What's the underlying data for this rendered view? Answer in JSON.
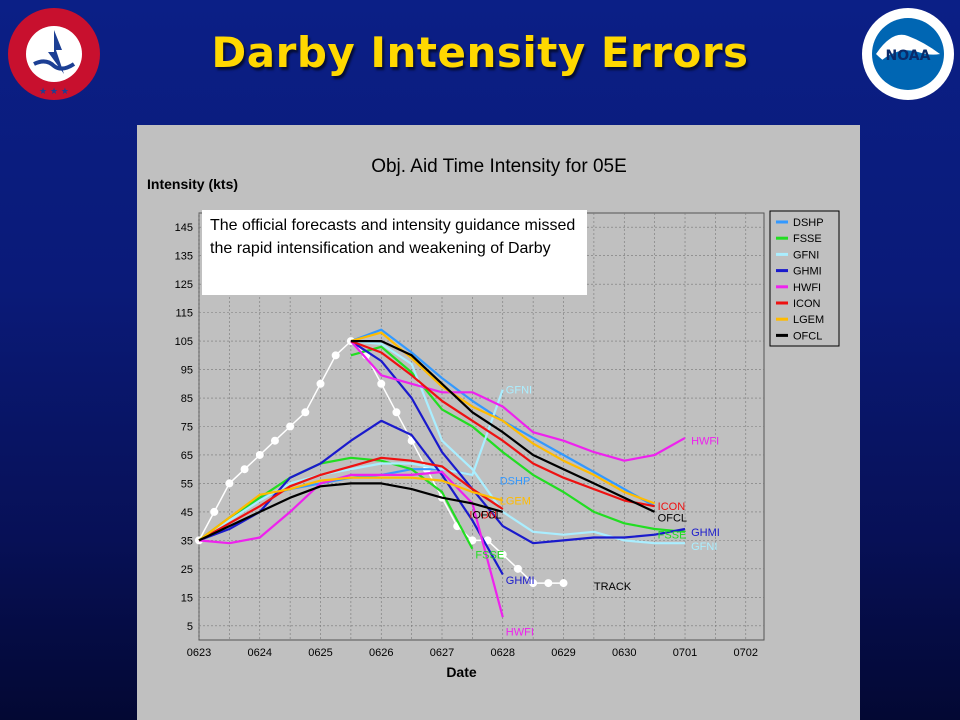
{
  "slide": {
    "title": "Darby Intensity Errors",
    "left_logo": "National Weather Service",
    "right_logo": "NOAA"
  },
  "annotation": "The official forecasts and intensity guidance missed the rapid intensification and weakening of Darby",
  "chart_data": {
    "type": "line",
    "title": "Obj. Aid Time Intensity for 05E",
    "ylabel": "Intensity (kts)",
    "xlabel": "Date",
    "x_ticks": [
      "0623",
      "0624",
      "0625",
      "0626",
      "0627",
      "0628",
      "0629",
      "0630",
      "0701",
      "0702"
    ],
    "y_ticks": [
      5,
      15,
      25,
      35,
      45,
      55,
      65,
      75,
      85,
      95,
      105,
      115,
      125,
      135,
      145
    ],
    "xlim": [
      0,
      9.3
    ],
    "ylim": [
      0,
      150
    ],
    "grid": true,
    "legend_position": "right",
    "legend": [
      {
        "name": "DSHP",
        "color": "#3399ff"
      },
      {
        "name": "FSSE",
        "color": "#22dd22"
      },
      {
        "name": "GFNI",
        "color": "#aaeeff"
      },
      {
        "name": "GHMI",
        "color": "#1a1acc"
      },
      {
        "name": "HWFI",
        "color": "#ee22ee"
      },
      {
        "name": "ICON",
        "color": "#ee1111"
      },
      {
        "name": "LGEM",
        "color": "#ffbb00"
      },
      {
        "name": "OFCL",
        "color": "#000000"
      }
    ],
    "series": [
      {
        "name": "TRACK",
        "color": "#ffffff",
        "marker": true,
        "x": [
          0,
          0.25,
          0.5,
          0.75,
          1,
          1.25,
          1.5,
          1.75,
          2,
          2.25,
          2.5,
          2.75,
          3,
          3.25,
          3.5,
          3.75,
          4,
          4.25,
          4.5,
          4.75,
          5,
          5.25,
          5.5,
          5.75,
          6
        ],
        "y": [
          35,
          45,
          55,
          60,
          65,
          70,
          75,
          80,
          90,
          100,
          105,
          100,
          90,
          80,
          70,
          60,
          50,
          40,
          35,
          35,
          30,
          25,
          20,
          20,
          20
        ]
      },
      {
        "name": "DSHP",
        "color": "#3399ff",
        "segments": [
          {
            "x": [
              0,
              0.5,
              1,
              1.5,
              2,
              2.5,
              3,
              3.5,
              4,
              4.5,
              5,
              5.5,
              6,
              6.5,
              7,
              7.5
            ],
            "y": [
              35,
              42,
              50,
              53,
              55,
              57,
              58,
              60,
              60,
              58,
              null,
              null,
              null,
              null,
              null,
              null
            ]
          },
          {
            "x": [
              2.5,
              3,
              3.5,
              4,
              4.5,
              5,
              5.5,
              6,
              6.5,
              7,
              7.5
            ],
            "y": [
              105,
              109,
              101,
              92,
              84,
              77,
              71,
              65,
              59,
              53,
              47
            ]
          }
        ]
      },
      {
        "name": "FSSE",
        "color": "#22dd22",
        "segments": [
          {
            "x": [
              0,
              0.5,
              1,
              1.5,
              2,
              2.5,
              3,
              3.5,
              4,
              4.5
            ],
            "y": [
              35,
              43,
              50,
              57,
              62,
              64,
              63,
              60,
              52,
              32
            ]
          },
          {
            "x": [
              2.5,
              3,
              3.5,
              4,
              4.5,
              5,
              5.5,
              6,
              6.5,
              7,
              7.5,
              8
            ],
            "y": [
              100,
              103,
              94,
              81,
              75,
              66,
              58,
              52,
              45,
              41,
              39,
              38
            ]
          }
        ]
      },
      {
        "name": "GFNI",
        "color": "#aaeeff",
        "segments": [
          {
            "x": [
              0,
              0.5,
              1,
              1.5,
              2,
              2.5,
              3,
              3.5,
              4,
              4.5,
              5
            ],
            "y": [
              35,
              42,
              49,
              55,
              58,
              60,
              62,
              62,
              60,
              58,
              88
            ]
          },
          {
            "x": [
              2.5,
              3,
              3.5,
              4,
              4.5,
              5,
              5.5,
              6,
              6.5,
              7,
              7.5,
              8
            ],
            "y": [
              105,
              104,
              97,
              70,
              60,
              45,
              38,
              37,
              38,
              35,
              34,
              34
            ]
          }
        ]
      },
      {
        "name": "GHMI",
        "color": "#1a1acc",
        "segments": [
          {
            "x": [
              0,
              0.5,
              1,
              1.5,
              2,
              2.5,
              3,
              3.5,
              4,
              4.5,
              5
            ],
            "y": [
              35,
              39,
              45,
              57,
              62,
              70,
              77,
              72,
              58,
              42,
              23
            ]
          },
          {
            "x": [
              2.5,
              3,
              3.5,
              4,
              4.5,
              5,
              5.5,
              6,
              6.5,
              7,
              7.5,
              8
            ],
            "y": [
              105,
              98,
              85,
              66,
              53,
              40,
              34,
              35,
              36,
              36,
              37,
              39
            ]
          }
        ]
      },
      {
        "name": "HWFI",
        "color": "#ee22ee",
        "segments": [
          {
            "x": [
              0,
              0.5,
              1,
              1.5,
              2,
              2.5,
              3,
              3.5,
              4,
              4.5,
              5
            ],
            "y": [
              35,
              34,
              36,
              45,
              55,
              58,
              58,
              58,
              59,
              48,
              8
            ]
          },
          {
            "x": [
              2.5,
              3,
              3.5,
              4,
              4.5,
              5,
              5.5,
              6,
              6.5,
              7,
              7.5,
              8
            ],
            "y": [
              105,
              93,
              90,
              87,
              87,
              82,
              73,
              70,
              66,
              63,
              65,
              71
            ]
          }
        ]
      },
      {
        "name": "ICON",
        "color": "#ee1111",
        "segments": [
          {
            "x": [
              0,
              0.5,
              1,
              1.5,
              2,
              2.5,
              3,
              3.5,
              4,
              4.5,
              5
            ],
            "y": [
              35,
              41,
              47,
              54,
              58,
              61,
              64,
              63,
              61,
              53,
              46
            ]
          },
          {
            "x": [
              2.5,
              3,
              3.5,
              4,
              4.5,
              5,
              5.5,
              6,
              6.5,
              7,
              7.5
            ],
            "y": [
              105,
              101,
              93,
              84,
              77,
              70,
              62,
              57,
              53,
              49,
              47
            ]
          }
        ]
      },
      {
        "name": "LGEM",
        "color": "#ffbb00",
        "segments": [
          {
            "x": [
              0,
              0.5,
              1,
              1.5,
              2,
              2.5,
              3,
              3.5,
              4,
              4.5,
              5
            ],
            "y": [
              35,
              43,
              51,
              53,
              56,
              57,
              57,
              57,
              56,
              52,
              49
            ]
          },
          {
            "x": [
              2.5,
              3,
              3.5,
              4,
              4.5,
              5,
              5.5,
              6,
              6.5,
              7,
              7.5
            ],
            "y": [
              105,
              108,
              99,
              89,
              82,
              77,
              69,
              63,
              58,
              52,
              48
            ]
          }
        ]
      },
      {
        "name": "OFCL",
        "color": "#000000",
        "segments": [
          {
            "x": [
              0,
              0.5,
              1,
              1.5,
              2,
              2.5,
              3,
              3.5,
              4,
              4.5,
              5
            ],
            "y": [
              35,
              40,
              45,
              50,
              54,
              55,
              55,
              53,
              50,
              48,
              45
            ]
          },
          {
            "x": [
              2.5,
              3,
              3.5,
              4,
              4.5,
              5,
              5.5,
              6,
              6.5,
              7,
              7.5
            ],
            "y": [
              105,
              105,
              100,
              90,
              80,
              73,
              65,
              60,
              55,
              50,
              45
            ]
          }
        ]
      }
    ],
    "end_labels": [
      {
        "text": "GFNI",
        "x": 5.05,
        "y": 88,
        "color": "#aaeeff"
      },
      {
        "text": "HWFI",
        "x": 8.1,
        "y": 70,
        "color": "#ee22ee"
      },
      {
        "text": "DSHP",
        "x": 4.95,
        "y": 56,
        "color": "#3399ff"
      },
      {
        "text": "LGEM",
        "x": 4.95,
        "y": 49,
        "color": "#ffbb00"
      },
      {
        "text": "ICON",
        "x": 4.45,
        "y": 44,
        "color": "#ee1111"
      },
      {
        "text": "OFCL",
        "x": 4.5,
        "y": 44,
        "color": "#000000"
      },
      {
        "text": "ICON",
        "x": 7.55,
        "y": 47,
        "color": "#ee1111"
      },
      {
        "text": "OFCL",
        "x": 7.55,
        "y": 43,
        "color": "#000000"
      },
      {
        "text": "GHMI",
        "x": 8.1,
        "y": 38,
        "color": "#1a1acc"
      },
      {
        "text": "FSSE",
        "x": 7.55,
        "y": 37,
        "color": "#22dd22"
      },
      {
        "text": "GFNI",
        "x": 8.1,
        "y": 33,
        "color": "#aaeeff"
      },
      {
        "text": "FSSE",
        "x": 4.55,
        "y": 30,
        "color": "#22dd22"
      },
      {
        "text": "GHMI",
        "x": 5.05,
        "y": 21,
        "color": "#1a1acc"
      },
      {
        "text": "TRACK",
        "x": 6.5,
        "y": 19,
        "color": "#000000"
      },
      {
        "text": "HWFI",
        "x": 5.05,
        "y": 3,
        "color": "#ee22ee"
      }
    ]
  }
}
